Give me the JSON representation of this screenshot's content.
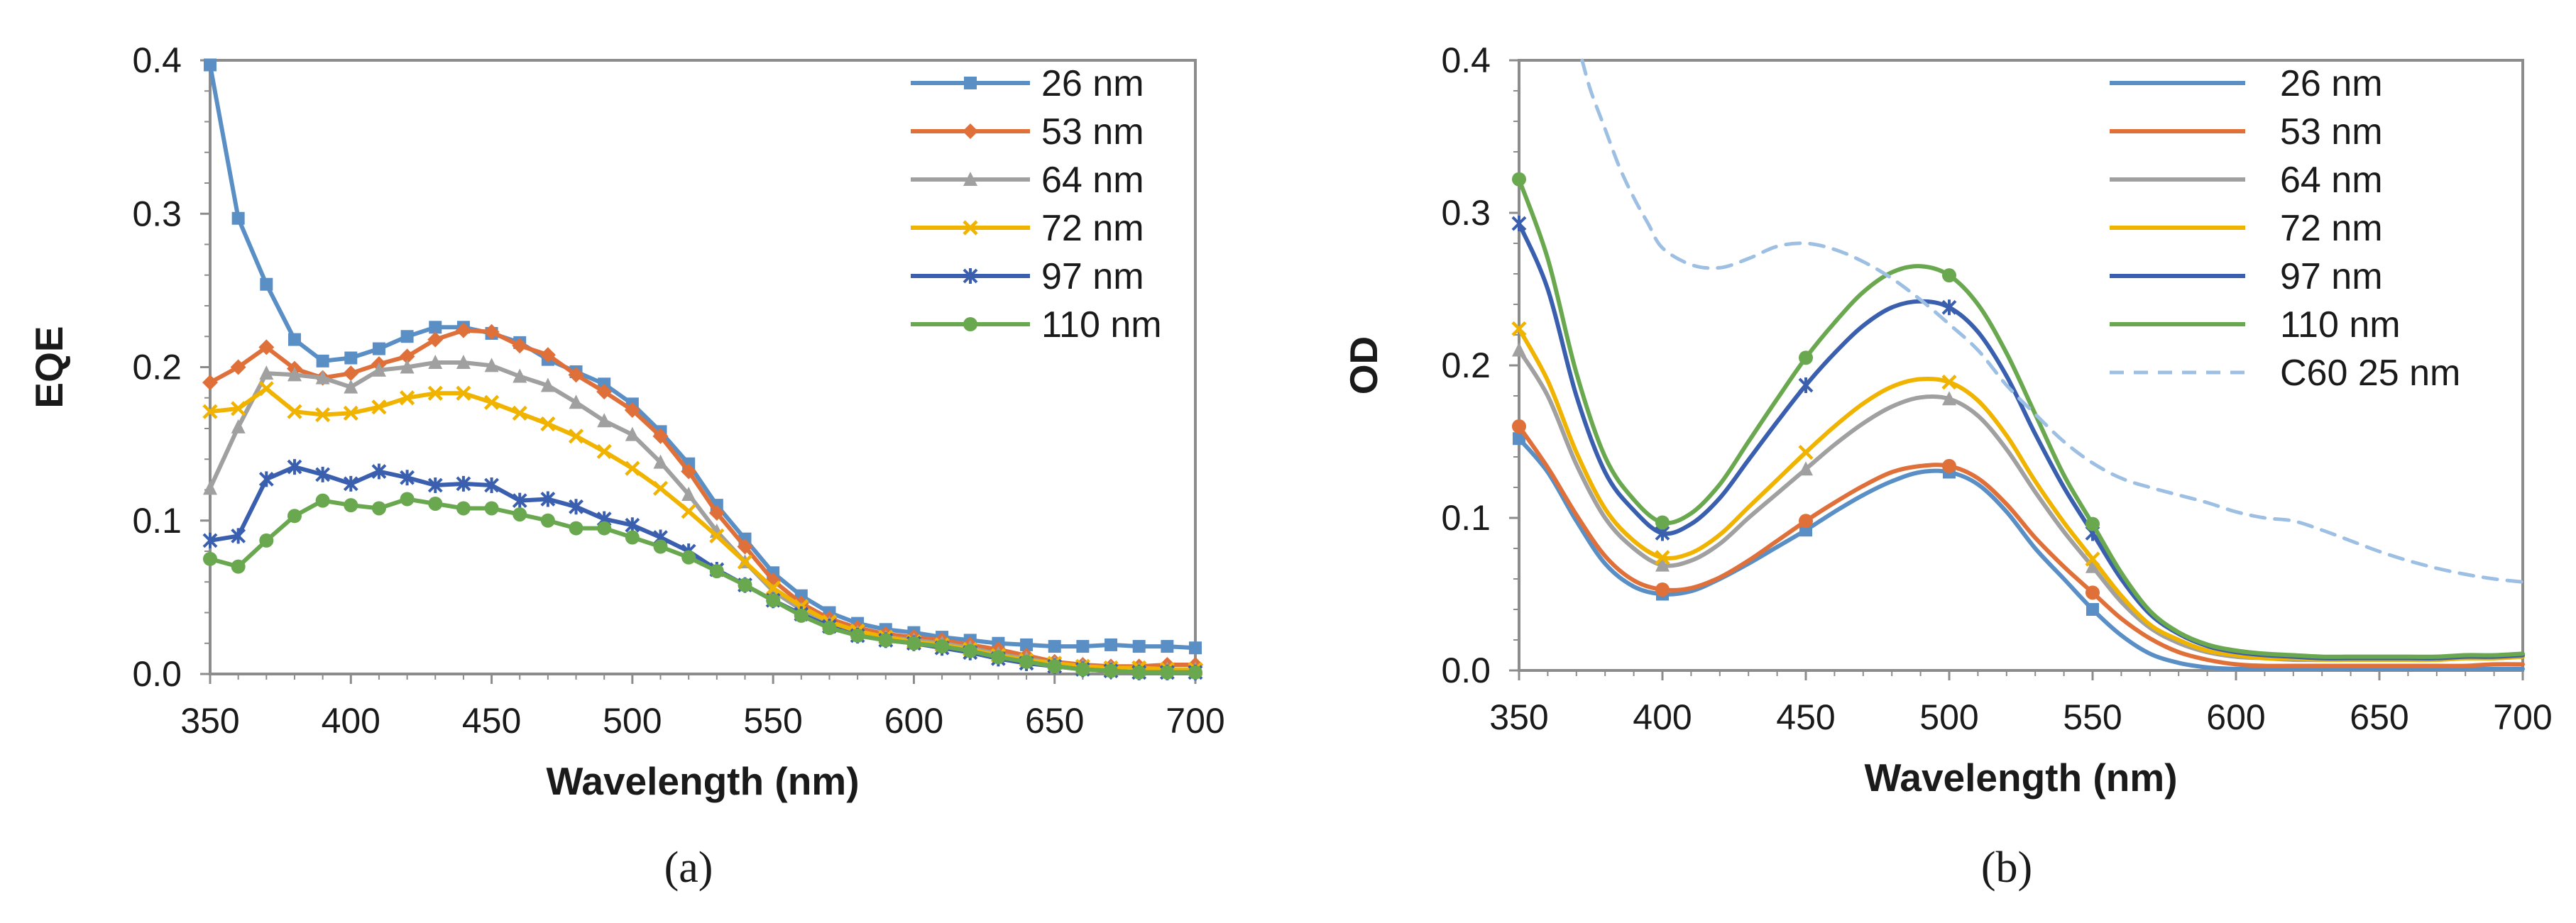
{
  "chart_data": [
    {
      "type": "line",
      "panel_label": "(a)",
      "title": "",
      "xlabel": "Wavelength (nm)",
      "ylabel": "EQE",
      "xlim": [
        350,
        700
      ],
      "ylim": [
        0,
        0.4
      ],
      "xticks": [
        350,
        400,
        450,
        500,
        550,
        600,
        650,
        700
      ],
      "xtick_labels": [
        "350",
        "400",
        "450",
        "500",
        "550",
        "600",
        "650",
        "700"
      ],
      "yticks": [
        0.0,
        0.1,
        0.2,
        0.3,
        0.4
      ],
      "ytick_labels": [
        "0.0",
        "0.1",
        "0.2",
        "0.3",
        "0.4"
      ],
      "grid": false,
      "legend_position": "top-right",
      "x": [
        350,
        360,
        370,
        380,
        390,
        400,
        410,
        420,
        430,
        440,
        450,
        460,
        470,
        480,
        490,
        500,
        510,
        520,
        530,
        540,
        550,
        560,
        570,
        580,
        590,
        600,
        610,
        620,
        630,
        640,
        650,
        660,
        670,
        680,
        690,
        700
      ],
      "series": [
        {
          "name": "26 nm",
          "color": "#5a8fc6",
          "marker": "square",
          "values": [
            0.397,
            0.297,
            0.254,
            0.218,
            0.204,
            0.206,
            0.212,
            0.22,
            0.226,
            0.226,
            0.222,
            0.216,
            0.205,
            0.197,
            0.189,
            0.176,
            0.158,
            0.137,
            0.11,
            0.088,
            0.066,
            0.051,
            0.04,
            0.033,
            0.029,
            0.027,
            0.024,
            0.022,
            0.02,
            0.019,
            0.018,
            0.018,
            0.019,
            0.018,
            0.018,
            0.017
          ]
        },
        {
          "name": "53 nm",
          "color": "#e0703a",
          "marker": "diamond",
          "values": [
            0.19,
            0.2,
            0.213,
            0.199,
            0.193,
            0.196,
            0.202,
            0.207,
            0.218,
            0.224,
            0.223,
            0.214,
            0.208,
            0.195,
            0.184,
            0.172,
            0.155,
            0.132,
            0.105,
            0.083,
            0.061,
            0.046,
            0.036,
            0.03,
            0.026,
            0.024,
            0.022,
            0.019,
            0.016,
            0.012,
            0.008,
            0.006,
            0.005,
            0.005,
            0.006,
            0.006
          ]
        },
        {
          "name": "64 nm",
          "color": "#a0a0a0",
          "marker": "triangle",
          "values": [
            0.121,
            0.161,
            0.196,
            0.195,
            0.193,
            0.187,
            0.198,
            0.2,
            0.203,
            0.203,
            0.201,
            0.194,
            0.188,
            0.177,
            0.165,
            0.156,
            0.138,
            0.117,
            0.093,
            0.073,
            0.054,
            0.042,
            0.033,
            0.027,
            0.024,
            0.022,
            0.02,
            0.017,
            0.013,
            0.01,
            0.007,
            0.005,
            0.004,
            0.003,
            0.003,
            0.003
          ]
        },
        {
          "name": "72 nm",
          "color": "#f0b400",
          "marker": "x",
          "values": [
            0.171,
            0.173,
            0.186,
            0.171,
            0.169,
            0.17,
            0.174,
            0.18,
            0.183,
            0.183,
            0.177,
            0.17,
            0.163,
            0.155,
            0.145,
            0.134,
            0.121,
            0.106,
            0.09,
            0.073,
            0.056,
            0.044,
            0.034,
            0.028,
            0.024,
            0.021,
            0.019,
            0.016,
            0.012,
            0.009,
            0.007,
            0.005,
            0.004,
            0.004,
            0.003,
            0.003
          ]
        },
        {
          "name": "97 nm",
          "color": "#3a5fae",
          "marker": "asterisk",
          "values": [
            0.087,
            0.09,
            0.127,
            0.135,
            0.13,
            0.124,
            0.132,
            0.128,
            0.123,
            0.124,
            0.123,
            0.113,
            0.114,
            0.109,
            0.101,
            0.097,
            0.089,
            0.08,
            0.068,
            0.058,
            0.048,
            0.039,
            0.031,
            0.025,
            0.022,
            0.02,
            0.017,
            0.014,
            0.01,
            0.007,
            0.005,
            0.003,
            0.002,
            0.001,
            0.001,
            0.001
          ]
        },
        {
          "name": "110 nm",
          "color": "#6aa84f",
          "marker": "circle",
          "values": [
            0.075,
            0.07,
            0.087,
            0.103,
            0.113,
            0.11,
            0.108,
            0.114,
            0.111,
            0.108,
            0.108,
            0.104,
            0.1,
            0.095,
            0.095,
            0.089,
            0.083,
            0.076,
            0.067,
            0.058,
            0.048,
            0.038,
            0.03,
            0.025,
            0.022,
            0.02,
            0.018,
            0.015,
            0.011,
            0.008,
            0.005,
            0.003,
            0.002,
            0.001,
            0.001,
            0.001
          ]
        }
      ]
    },
    {
      "type": "line",
      "panel_label": "(b)",
      "title": "",
      "xlabel": "Wavelength (nm)",
      "ylabel": "OD",
      "xlim": [
        350,
        700
      ],
      "ylim": [
        0,
        0.4
      ],
      "xticks": [
        350,
        400,
        450,
        500,
        550,
        600,
        650,
        700
      ],
      "xtick_labels": [
        "350",
        "400",
        "450",
        "500",
        "550",
        "600",
        "650",
        "700"
      ],
      "yticks": [
        0.0,
        0.1,
        0.2,
        0.3,
        0.4
      ],
      "ytick_labels": [
        "0.0",
        "0.1",
        "0.2",
        "0.3",
        "0.4"
      ],
      "grid": false,
      "legend_position": "top-right",
      "x": [
        350,
        360,
        370,
        380,
        390,
        400,
        410,
        420,
        430,
        440,
        450,
        460,
        470,
        480,
        490,
        500,
        510,
        520,
        530,
        540,
        550,
        560,
        570,
        580,
        590,
        600,
        610,
        620,
        630,
        640,
        650,
        660,
        670,
        680,
        690,
        700
      ],
      "marker_x": [
        350,
        400,
        450,
        500,
        550
      ],
      "series": [
        {
          "name": "26 nm",
          "color": "#5a8fc6",
          "marker": "square",
          "values": [
            0.152,
            0.13,
            0.098,
            0.07,
            0.055,
            0.05,
            0.052,
            0.06,
            0.07,
            0.081,
            0.092,
            0.104,
            0.115,
            0.124,
            0.13,
            0.13,
            0.122,
            0.104,
            0.08,
            0.06,
            0.04,
            0.023,
            0.011,
            0.005,
            0.002,
            0.001,
            0.001,
            0.001,
            0.001,
            0.001,
            0.001,
            0.001,
            0.001,
            0.001,
            0.001,
            0.001
          ]
        },
        {
          "name": "53 nm",
          "color": "#e0703a",
          "marker": "circle",
          "values": [
            0.16,
            0.133,
            0.102,
            0.075,
            0.059,
            0.053,
            0.054,
            0.061,
            0.072,
            0.085,
            0.098,
            0.11,
            0.121,
            0.13,
            0.134,
            0.134,
            0.126,
            0.109,
            0.087,
            0.068,
            0.051,
            0.034,
            0.021,
            0.012,
            0.007,
            0.004,
            0.003,
            0.003,
            0.003,
            0.003,
            0.003,
            0.003,
            0.003,
            0.003,
            0.004,
            0.004
          ]
        },
        {
          "name": "64 nm",
          "color": "#a0a0a0",
          "marker": "triangle",
          "values": [
            0.21,
            0.18,
            0.135,
            0.1,
            0.08,
            0.069,
            0.072,
            0.083,
            0.1,
            0.116,
            0.132,
            0.148,
            0.162,
            0.173,
            0.179,
            0.178,
            0.167,
            0.145,
            0.117,
            0.091,
            0.068,
            0.045,
            0.028,
            0.018,
            0.012,
            0.009,
            0.008,
            0.007,
            0.007,
            0.007,
            0.007,
            0.007,
            0.007,
            0.008,
            0.008,
            0.009
          ]
        },
        {
          "name": "72 nm",
          "color": "#f0b400",
          "marker": "x",
          "values": [
            0.224,
            0.19,
            0.143,
            0.106,
            0.085,
            0.074,
            0.077,
            0.089,
            0.107,
            0.125,
            0.143,
            0.16,
            0.175,
            0.186,
            0.191,
            0.189,
            0.177,
            0.154,
            0.124,
            0.097,
            0.073,
            0.049,
            0.03,
            0.02,
            0.013,
            0.01,
            0.008,
            0.008,
            0.007,
            0.007,
            0.007,
            0.007,
            0.007,
            0.008,
            0.008,
            0.009
          ]
        },
        {
          "name": "97 nm",
          "color": "#3a5fae",
          "marker": "asterisk",
          "values": [
            0.293,
            0.25,
            0.18,
            0.13,
            0.105,
            0.09,
            0.096,
            0.113,
            0.138,
            0.163,
            0.187,
            0.208,
            0.226,
            0.238,
            0.242,
            0.238,
            0.222,
            0.193,
            0.155,
            0.12,
            0.09,
            0.06,
            0.037,
            0.024,
            0.016,
            0.012,
            0.01,
            0.009,
            0.008,
            0.008,
            0.008,
            0.008,
            0.008,
            0.009,
            0.009,
            0.01
          ]
        },
        {
          "name": "110 nm",
          "color": "#6aa84f",
          "marker": "circle",
          "values": [
            0.322,
            0.27,
            0.195,
            0.14,
            0.112,
            0.097,
            0.103,
            0.122,
            0.15,
            0.178,
            0.205,
            0.228,
            0.248,
            0.261,
            0.265,
            0.259,
            0.24,
            0.208,
            0.168,
            0.128,
            0.096,
            0.064,
            0.039,
            0.025,
            0.017,
            0.013,
            0.011,
            0.01,
            0.009,
            0.009,
            0.009,
            0.009,
            0.009,
            0.01,
            0.01,
            0.011
          ]
        },
        {
          "name": "C60 25 nm",
          "color": "#9dbfe3",
          "dashed": true,
          "marker": "none",
          "x": [
            372,
            375,
            380,
            385,
            390,
            395,
            400,
            410,
            420,
            430,
            440,
            450,
            460,
            470,
            480,
            490,
            500,
            510,
            520,
            530,
            540,
            550,
            560,
            570,
            580,
            590,
            600,
            610,
            620,
            630,
            640,
            650,
            660,
            670,
            680,
            690,
            700
          ],
          "values": [
            0.4,
            0.38,
            0.355,
            0.33,
            0.31,
            0.293,
            0.277,
            0.266,
            0.264,
            0.27,
            0.278,
            0.28,
            0.276,
            0.268,
            0.257,
            0.243,
            0.227,
            0.21,
            0.187,
            0.168,
            0.15,
            0.136,
            0.126,
            0.12,
            0.115,
            0.11,
            0.104,
            0.1,
            0.098,
            0.092,
            0.085,
            0.078,
            0.072,
            0.067,
            0.063,
            0.06,
            0.058
          ]
        }
      ]
    }
  ]
}
